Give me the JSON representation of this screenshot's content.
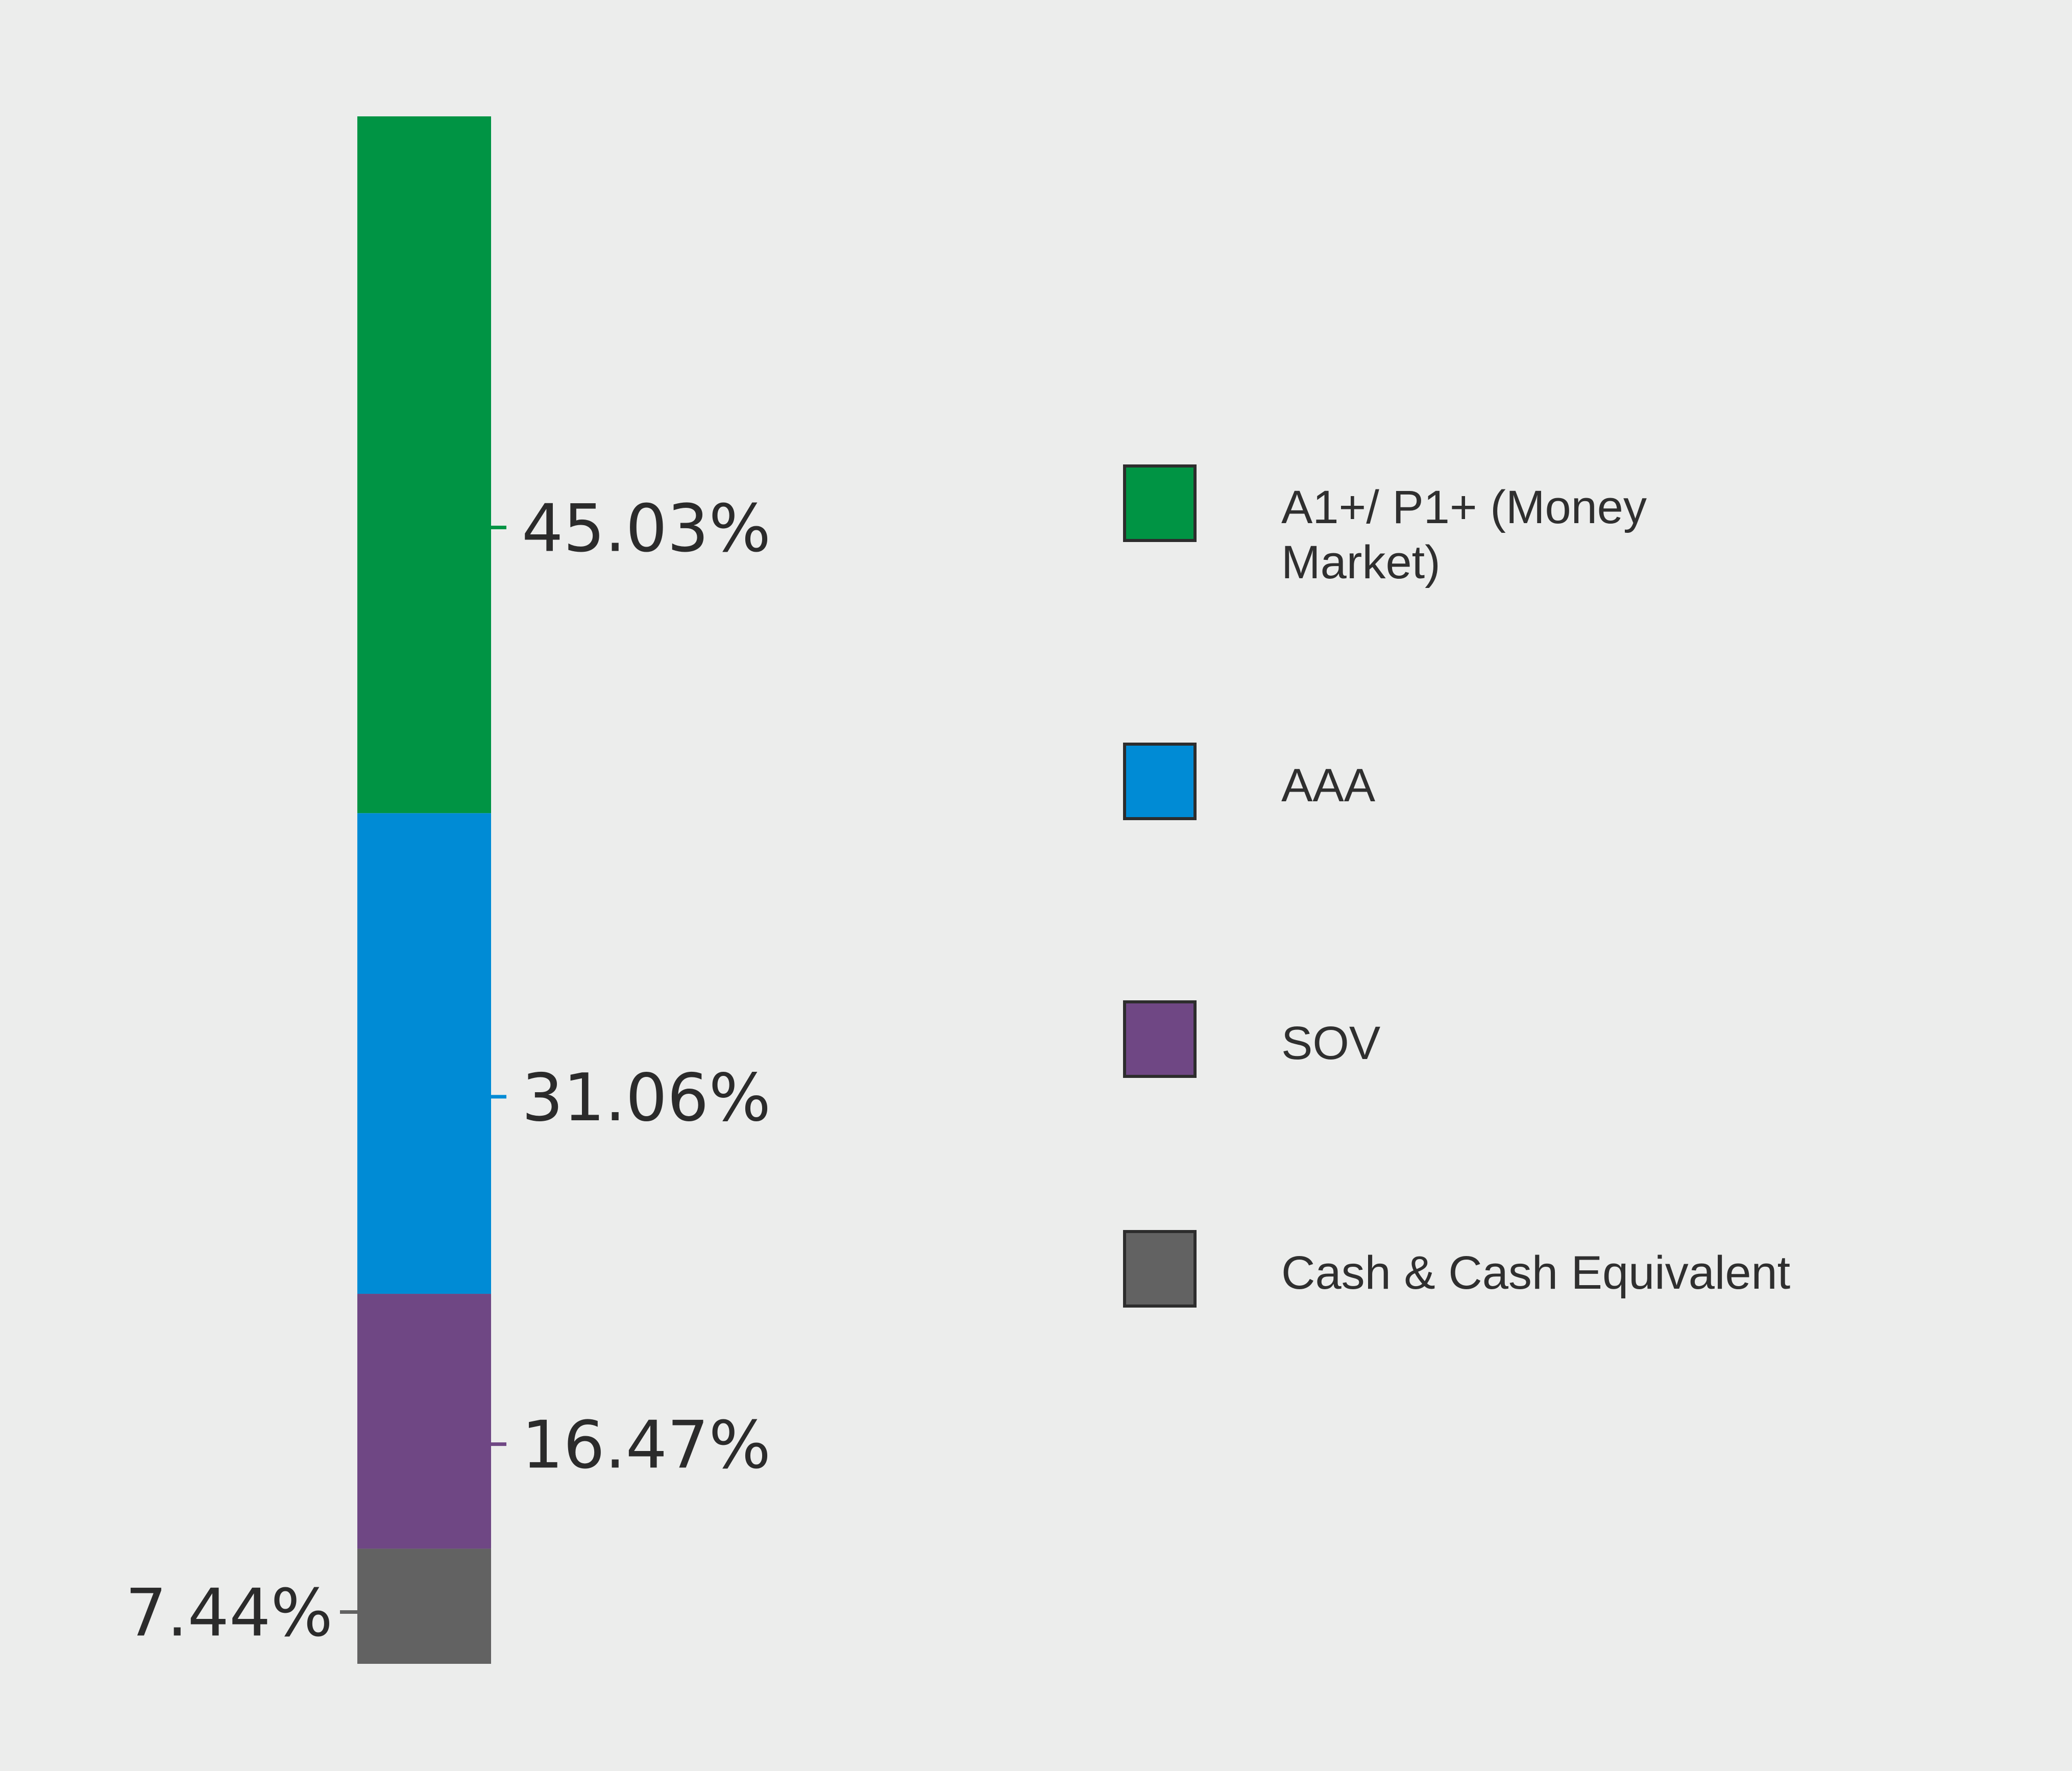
{
  "chart_data": {
    "type": "bar",
    "stacked": true,
    "orientation": "vertical",
    "title": "",
    "xlabel": "",
    "ylabel": "",
    "ylim": [
      0,
      100
    ],
    "grid": false,
    "legend_position": "right",
    "categories": [
      ""
    ],
    "series": [
      {
        "name": "A1+/ P1+ (Money Market)",
        "values": [
          45.03
        ],
        "label": "45.03%",
        "color": "#009444"
      },
      {
        "name": "AAA",
        "values": [
          31.06
        ],
        "label": "31.06%",
        "color": "#008bd5"
      },
      {
        "name": "SOV",
        "values": [
          16.47
        ],
        "label": "16.47%",
        "color": "#6f4784"
      },
      {
        "name": "Cash & Cash Equivalent",
        "values": [
          7.44
        ],
        "label": "7.44%",
        "color": "#626262"
      }
    ]
  }
}
